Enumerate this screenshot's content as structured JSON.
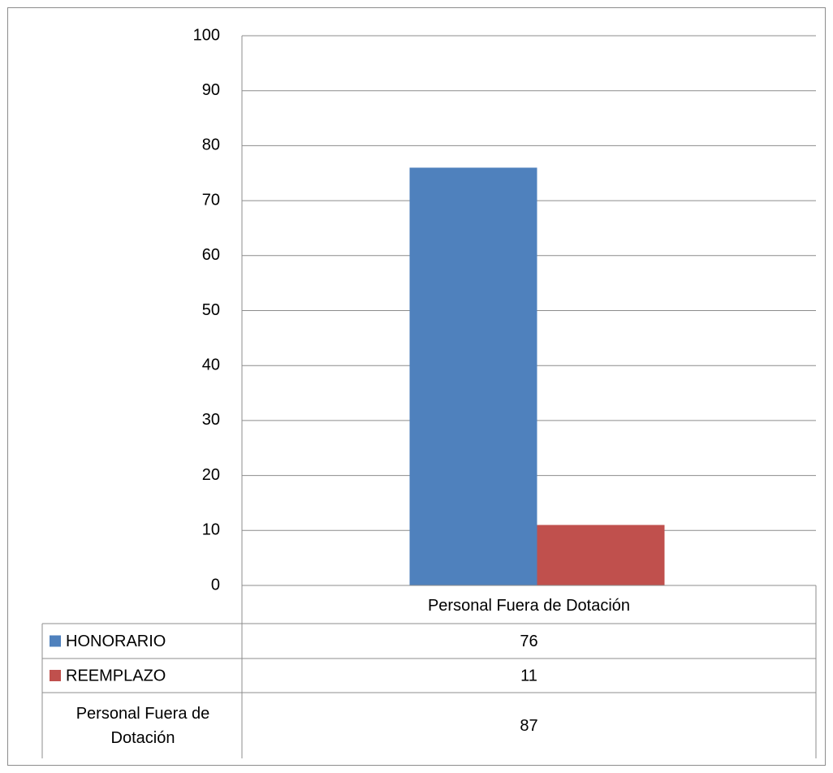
{
  "chart_data": {
    "type": "bar",
    "categories": [
      "Personal Fuera de Dotación"
    ],
    "series": [
      {
        "name": "HONORARIO",
        "values": [
          76
        ],
        "color": "#4f81bd"
      },
      {
        "name": "REEMPLAZO",
        "values": [
          11
        ],
        "color": "#c0504d"
      }
    ],
    "ylim": [
      0,
      100
    ],
    "yticks": [
      0,
      10,
      20,
      30,
      40,
      50,
      60,
      70,
      80,
      90,
      100
    ],
    "grid": true,
    "data_table": {
      "header": "Personal Fuera de Dotación",
      "rows": [
        {
          "label": "HONORARIO",
          "value": "76",
          "legend_key": true
        },
        {
          "label": "REEMPLAZO",
          "value": "11",
          "legend_key": true
        },
        {
          "label_lines": [
            "Personal Fuera de",
            "Dotación"
          ],
          "value": "87",
          "legend_key": false
        }
      ]
    }
  }
}
